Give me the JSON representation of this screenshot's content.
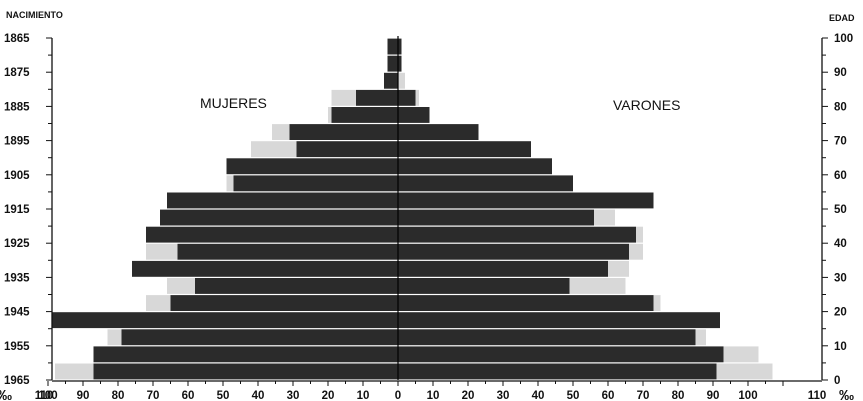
{
  "chart_data": {
    "type": "bar",
    "orientation": "population-pyramid",
    "left_axis_title": "NACIMIENTO",
    "right_axis_title": "EDAD",
    "left_group_label": "MUJERES",
    "right_group_label": "VARONES",
    "unit_left": "‰",
    "unit_right": "‰",
    "x_tick_labels": [
      "110",
      "100",
      "90",
      "80",
      "70",
      "60",
      "50",
      "40",
      "30",
      "20",
      "10",
      "0",
      "10",
      "20",
      "30",
      "40",
      "50",
      "60",
      "70",
      "80",
      "90",
      "100",
      "110"
    ],
    "x_range": [
      -110,
      110
    ],
    "birth_year_ticks": [
      1865,
      1875,
      1885,
      1895,
      1905,
      1915,
      1925,
      1935,
      1945,
      1955,
      1965
    ],
    "age_ticks": [
      100,
      90,
      80,
      70,
      60,
      50,
      40,
      30,
      20,
      10,
      0
    ],
    "age_range": [
      0,
      100
    ],
    "colors": {
      "dark": "#2b2b2b",
      "light": "#d8d8d8",
      "axis": "#111111"
    },
    "bars": [
      {
        "age": 97.5,
        "women_dark": 3,
        "women_light": 0,
        "men_dark": 1,
        "men_light": 0
      },
      {
        "age": 92.5,
        "women_dark": 3,
        "women_light": 0,
        "men_dark": 1,
        "men_light": 0
      },
      {
        "age": 87.5,
        "women_dark": 4,
        "women_light": 0,
        "men_dark": 0,
        "men_light": 2
      },
      {
        "age": 82.5,
        "women_dark": 12,
        "women_light": 7,
        "men_dark": 5,
        "men_light": 1
      },
      {
        "age": 77.5,
        "women_dark": 19,
        "women_light": 1,
        "men_dark": 9,
        "men_light": 0
      },
      {
        "age": 72.5,
        "women_dark": 31,
        "women_light": 5,
        "men_dark": 23,
        "men_light": 0
      },
      {
        "age": 67.5,
        "women_dark": 29,
        "women_light": 13,
        "men_dark": 38,
        "men_light": 0
      },
      {
        "age": 62.5,
        "women_dark": 49,
        "women_light": 0,
        "men_dark": 44,
        "men_light": 0
      },
      {
        "age": 57.5,
        "women_dark": 47,
        "women_light": 2,
        "men_dark": 50,
        "men_light": 0
      },
      {
        "age": 52.5,
        "women_dark": 66,
        "women_light": 0,
        "men_dark": 73,
        "men_light": 0
      },
      {
        "age": 47.5,
        "women_dark": 68,
        "women_light": 0,
        "men_dark": 56,
        "men_light": 6
      },
      {
        "age": 42.5,
        "women_dark": 72,
        "women_light": 0,
        "men_dark": 68,
        "men_light": 2
      },
      {
        "age": 37.5,
        "women_dark": 63,
        "women_light": 9,
        "men_dark": 66,
        "men_light": 4
      },
      {
        "age": 32.5,
        "women_dark": 76,
        "women_light": 0,
        "men_dark": 60,
        "men_light": 6
      },
      {
        "age": 27.5,
        "women_dark": 58,
        "women_light": 8,
        "men_dark": 49,
        "men_light": 16
      },
      {
        "age": 22.5,
        "women_dark": 65,
        "women_light": 7,
        "men_dark": 73,
        "men_light": 2
      },
      {
        "age": 17.5,
        "women_dark": 99,
        "women_light": 0,
        "men_dark": 92,
        "men_light": 0
      },
      {
        "age": 12.5,
        "women_dark": 79,
        "women_light": 4,
        "men_dark": 85,
        "men_light": 3
      },
      {
        "age": 7.5,
        "women_dark": 87,
        "women_light": 0,
        "men_dark": 93,
        "men_light": 10
      },
      {
        "age": 2.5,
        "women_dark": 87,
        "women_light": 11,
        "men_dark": 91,
        "men_light": 16
      }
    ]
  }
}
